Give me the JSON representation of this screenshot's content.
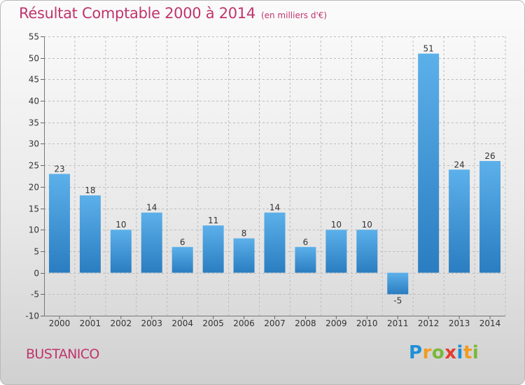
{
  "chart_data": {
    "type": "bar",
    "title": "Résultat Comptable 2000 à 2014",
    "subtitle": "(en milliers d'€)",
    "categories": [
      "2000",
      "2001",
      "2002",
      "2003",
      "2004",
      "2005",
      "2006",
      "2007",
      "2008",
      "2009",
      "2010",
      "2011",
      "2012",
      "2013",
      "2014"
    ],
    "values": [
      23,
      18,
      10,
      14,
      6,
      11,
      8,
      14,
      6,
      10,
      10,
      -5,
      51,
      24,
      26
    ],
    "ylim": [
      -10,
      55
    ],
    "yticks": [
      -10,
      -5,
      0,
      5,
      10,
      15,
      20,
      25,
      30,
      35,
      40,
      45,
      50,
      55
    ],
    "xlabel": "",
    "ylabel": "",
    "grid": true,
    "bar_color": "#4fa3e0"
  },
  "footer": {
    "location": "BUSTANICO",
    "logo_letters": [
      {
        "ch": "P",
        "color": "#1e8fd6"
      },
      {
        "ch": "r",
        "color": "#f29b1d"
      },
      {
        "ch": "o",
        "color": "#7ab83a"
      },
      {
        "ch": "x",
        "color": "#e43c2f"
      },
      {
        "ch": "i",
        "color": "#1e8fd6"
      },
      {
        "ch": "t",
        "color": "#f29b1d"
      },
      {
        "ch": "i",
        "color": "#7ab83a"
      }
    ]
  },
  "colors": {
    "title": "#c0356b",
    "grid": "#bdbdbd"
  }
}
